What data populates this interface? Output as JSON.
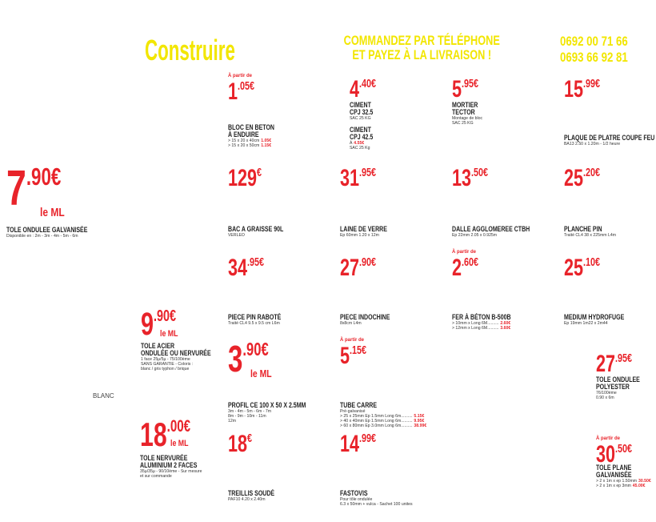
{
  "header": {
    "title": "Construire",
    "order_line1": "COMMANDEZ PAR TÉLÉPHONE",
    "order_line2": "ET PAYEZ À LA LIVRAISON !",
    "phone1": "0692 00 71 66",
    "phone2": "0693 66 92 81"
  },
  "menu": [
    "BLANC"
  ],
  "products": [
    {
      "price_int": "7",
      "price_dec": ".90€",
      "unit": "le ML",
      "name_lines": [
        "TOLE ONDULEE GALVANISÉE"
      ],
      "details": [
        "Disponible en : 2m - 3m - 4m - 5m - 6m"
      ]
    },
    {
      "from": "À partir de",
      "price_int": "1",
      "price_dec": ".05€",
      "name_lines": [
        "BLOC EN BETON",
        "À ENDUIRE"
      ],
      "details": [
        {
          "text": "> 15 x 20 x 40cm",
          "price": "1.05€"
        },
        {
          "text": "> 15 x 20 x 50cm",
          "price": "1.15€"
        }
      ]
    },
    {
      "price_int": "4",
      "price_dec": ".40€",
      "name_lines": [
        "CIMENT",
        "CPJ 32.5"
      ],
      "details": [
        "SAC 25 KG"
      ]
    },
    {
      "name_lines": [
        "CIMENT",
        "CPJ 42.5"
      ],
      "details": [
        {
          "text": "À",
          "price": "4.55€"
        },
        "SAC 25 Kg"
      ]
    },
    {
      "price_int": "5",
      "price_dec": ".95€",
      "name_lines": [
        "MORTIER",
        "TECTOR"
      ],
      "details": [
        "Montage de bloc",
        "SAC 25 KG"
      ]
    },
    {
      "price_int": "15",
      "price_dec": ".99€",
      "name_lines": [
        "PLAQUE DE PLATRE COUPE FEU"
      ],
      "details": [
        "BA13 2.50 x 1.20m - 1/2 heure"
      ]
    },
    {
      "price_int": "129",
      "price_dec": "€",
      "name_lines": [
        "BAC A GRAISSE 90L"
      ],
      "details": [
        "VERLEO"
      ]
    },
    {
      "price_int": "31",
      "price_dec": ".95€",
      "name_lines": [
        "LAINE DE VERRE"
      ],
      "details": [
        "Ep 60mm 1.20 x 12m"
      ]
    },
    {
      "price_int": "13",
      "price_dec": ".50€",
      "name_lines": [
        "DALLE AGGLOMEREE CTBH"
      ],
      "details": [
        "Ep 22mm 2.05 x 0.925m"
      ]
    },
    {
      "price_int": "25",
      "price_dec": ".20€",
      "name_lines": [
        "PLANCHE PIN"
      ],
      "details": [
        "Traité CL4 38 x 225mm L4m"
      ]
    },
    {
      "price_int": "34",
      "price_dec": ".95€",
      "name_lines": [
        "PIECE PIN RABOTÉ"
      ],
      "details": [
        "Traité CL4 9.5 x 9.5 cm L6m"
      ]
    },
    {
      "price_int": "27",
      "price_dec": ".90€",
      "name_lines": [
        "PIECE INDOCHINE"
      ],
      "details": [
        "8x8cm L4m"
      ]
    },
    {
      "from": "À partir de",
      "price_int": "2",
      "price_dec": ".60€",
      "name_lines": [
        "FER À BÉTON B-500B"
      ],
      "details": [
        {
          "text": "> 10mm x Long 6M..........",
          "price": "2.60€"
        },
        {
          "text": "> 12mm x Long 6M..........",
          "price": "3.60€"
        }
      ]
    },
    {
      "price_int": "25",
      "price_dec": ".10€",
      "name_lines": [
        "MEDIUM HYDROFUGE"
      ],
      "details": [
        "Ep 19mm 1m22 x 2m44"
      ]
    },
    {
      "price_int": "9",
      "price_dec": ".90€",
      "unit": "le ML",
      "name_lines": [
        "TOLE ACIER",
        "ONDULÉE OU NERVURÉE"
      ],
      "details": [
        "1 face 25µ/5µ - 75/100ème",
        "SANS GARANTIE - Coloris :",
        "blanc / gris typhon / brique"
      ]
    },
    {
      "price_int": "3",
      "price_dec": ".90€",
      "unit": "le ML",
      "name_lines": [
        "PROFIL CE 100 X 50 X 2.5MM"
      ],
      "details": [
        "3m - 4m - 5m - 6m - 7m",
        "8m - 9m - 10m - 11m",
        "12m"
      ]
    },
    {
      "from": "À partir de",
      "price_int": "5",
      "price_dec": ".15€",
      "name_lines": [
        "TUBE CARRE"
      ],
      "details": [
        "Pré-galvanisé",
        {
          "text": "> 25 x 25mm Ep 1.5mm Long 6m..........",
          "price": "5.15€"
        },
        {
          "text": "> 40 x 40mm Ep 1.5mm Long 6m..........",
          "price": "9.95€"
        },
        {
          "text": "> 60 x 80mm Ep 3.0mm Long 6m..........",
          "price": "38.99€"
        }
      ]
    },
    {
      "price_int": "27",
      "price_dec": ".95€",
      "name_lines": [
        "TOLE ONDULEE",
        "POLYESTER"
      ],
      "details": [
        "76/100ème",
        "0.90 x 6m"
      ]
    },
    {
      "price_int": "18",
      "price_dec": ".00€",
      "unit": "le ML",
      "name_lines": [
        "TOLE NERVURÉE",
        "ALUMINIUM 2 FACES"
      ],
      "details": [
        "35µ/35µ - 90/10ème - Sur mesure",
        "et sur commande"
      ]
    },
    {
      "price_int": "18",
      "price_dec": "€",
      "name_lines": [
        "TREILLIS SOUDÉ"
      ],
      "details": [
        "PAF10 4.20 x 2.40m"
      ]
    },
    {
      "price_int": "14",
      "price_dec": ".99€",
      "name_lines": [
        "FASTOVIS"
      ],
      "details": [
        "Pour tôle ondulée",
        "6.3 x 50mm + vulca - Sachet 100 unites"
      ]
    },
    {
      "from": "À partir de",
      "price_int": "30",
      "price_dec": ".50€",
      "name_lines": [
        "TOLE PLANE",
        "GALVANISÉE"
      ],
      "details": [
        {
          "text": "> 2 x 1m x ep 1.50mm",
          "price": "30.50€"
        },
        {
          "text": "> 2 x 1m x ep 3mm",
          "price": "45.00€"
        }
      ]
    }
  ]
}
